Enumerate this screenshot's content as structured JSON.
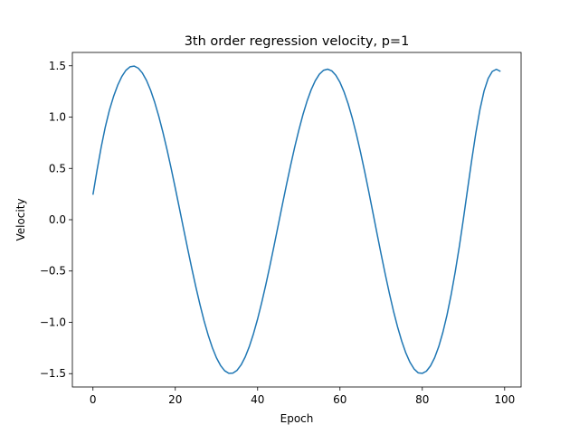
{
  "chart_data": {
    "type": "line",
    "title": "3th order regression velocity, p=1",
    "xlabel": "Epoch",
    "ylabel": "Velocity",
    "xlim": [
      -5,
      104
    ],
    "ylim": [
      -1.63,
      1.63
    ],
    "xticks": [
      0,
      20,
      40,
      60,
      80,
      100
    ],
    "yticks": [
      -1.5,
      -1.0,
      -0.5,
      0.0,
      0.5,
      1.0,
      1.5
    ],
    "ytick_labels": [
      "−1.5",
      "−1.0",
      "−0.5",
      "0.0",
      "0.5",
      "1.0",
      "1.5"
    ],
    "grid": false,
    "legend": "none",
    "series": [
      {
        "color": "#1f77b4",
        "x": [
          0,
          1,
          2,
          3,
          4,
          5,
          6,
          7,
          8,
          9,
          10,
          11,
          12,
          13,
          14,
          15,
          16,
          17,
          18,
          19,
          20,
          21,
          22,
          23,
          24,
          25,
          26,
          27,
          28,
          29,
          30,
          31,
          32,
          33,
          34,
          35,
          36,
          37,
          38,
          39,
          40,
          41,
          42,
          43,
          44,
          45,
          46,
          47,
          48,
          49,
          50,
          51,
          52,
          53,
          54,
          55,
          56,
          57,
          58,
          59,
          60,
          61,
          62,
          63,
          64,
          65,
          66,
          67,
          68,
          69,
          70,
          71,
          72,
          73,
          74,
          75,
          76,
          77,
          78,
          79,
          80,
          81,
          82,
          83,
          84,
          85,
          86,
          87,
          88,
          89,
          90,
          91,
          92,
          93,
          94,
          95,
          96,
          97,
          98,
          99
        ],
        "y": [
          0.243,
          0.484,
          0.707,
          0.904,
          1.068,
          1.2,
          1.31,
          1.395,
          1.456,
          1.49,
          1.497,
          1.477,
          1.43,
          1.358,
          1.262,
          1.144,
          1.006,
          0.851,
          0.681,
          0.499,
          0.308,
          0.112,
          -0.086,
          -0.282,
          -0.473,
          -0.656,
          -0.828,
          -0.986,
          -1.126,
          -1.247,
          -1.346,
          -1.421,
          -1.472,
          -1.497,
          -1.495,
          -1.468,
          -1.414,
          -1.336,
          -1.234,
          -1.11,
          -0.967,
          -0.806,
          -0.632,
          -0.446,
          -0.252,
          -0.054,
          0.144,
          0.339,
          0.527,
          0.706,
          0.872,
          1.023,
          1.155,
          1.266,
          1.354,
          1.418,
          1.456,
          1.467,
          1.451,
          1.408,
          1.339,
          1.245,
          1.128,
          0.989,
          0.831,
          0.657,
          0.47,
          0.273,
          0.07,
          -0.134,
          -0.336,
          -0.531,
          -0.717,
          -0.89,
          -1.046,
          -1.183,
          -1.298,
          -1.389,
          -1.454,
          -1.492,
          -1.497,
          -1.476,
          -1.424,
          -1.345,
          -1.236,
          -1.097,
          -0.929,
          -0.732,
          -0.508,
          -0.26,
          0.012,
          0.297,
          0.579,
          0.843,
          1.073,
          1.254,
          1.377,
          1.445,
          1.466,
          1.445
        ]
      }
    ]
  }
}
